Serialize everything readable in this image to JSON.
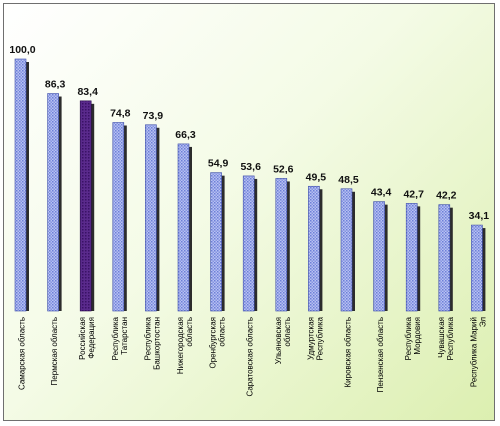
{
  "chart_data": {
    "type": "bar",
    "title": "",
    "xlabel": "",
    "ylabel": "",
    "ylim": [
      0,
      100
    ],
    "grid": false,
    "categories": [
      [
        "Самарская область"
      ],
      [
        "Пермская область"
      ],
      [
        "Российская",
        "Федерация"
      ],
      [
        "Республика",
        "Татарстан"
      ],
      [
        "Республика",
        "Башкортостан"
      ],
      [
        "Нижегородская",
        "область"
      ],
      [
        "Оренбургская",
        "область"
      ],
      [
        "Саратовская область"
      ],
      [
        "Ульяновская",
        "область"
      ],
      [
        "Удмуртская",
        "Республика"
      ],
      [
        "Кировская область"
      ],
      [
        "Пензенская область"
      ],
      [
        "Республика",
        "Мордовия"
      ],
      [
        "Чувашская",
        "Республика"
      ],
      [
        "Республика Марий",
        "Эл"
      ]
    ],
    "values": [
      100.0,
      86.3,
      83.4,
      74.8,
      73.9,
      66.3,
      54.9,
      53.6,
      52.6,
      49.5,
      48.5,
      43.4,
      42.7,
      42.2,
      34.1
    ],
    "value_labels": [
      "100,0",
      "86,3",
      "83,4",
      "74,8",
      "73,9",
      "66,3",
      "54,9",
      "53,6",
      "52,6",
      "49,5",
      "48,5",
      "43,4",
      "42,7",
      "42,2",
      "34,1"
    ],
    "highlight_index": 2,
    "colors": {
      "bar": "#9aa7ec",
      "bar_highlight": "#4a1e78",
      "bar_shadow": "#2c2c2c"
    }
  }
}
